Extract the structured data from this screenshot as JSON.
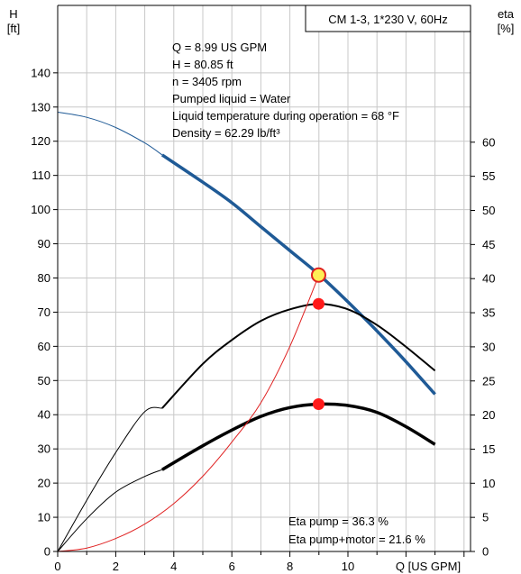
{
  "chart_data": {
    "type": "line",
    "title": "CM 1-3, 1*230 V, 60Hz",
    "left_axis": {
      "label_line1": "H",
      "label_line2": "[ft]",
      "min": 0,
      "max": 140,
      "ticks": [
        0,
        10,
        20,
        30,
        40,
        50,
        60,
        70,
        80,
        90,
        100,
        110,
        120,
        130,
        140
      ]
    },
    "right_axis": {
      "label_line1": "eta",
      "label_line2": "[%]",
      "min": 0,
      "max": 60,
      "ticks": [
        0,
        5,
        10,
        15,
        20,
        25,
        30,
        35,
        40,
        45,
        50,
        55,
        60
      ]
    },
    "x_axis": {
      "label": "Q [US GPM]",
      "min": 0,
      "max": 14,
      "ticks": [
        0,
        2,
        4,
        6,
        8,
        10
      ]
    },
    "info_lines": [
      "Q = 8.99 US GPM",
      "H = 80.85 ft",
      "n = 3405 rpm",
      "Pumped liquid = Water",
      "Liquid temperature during operation = 68 °F",
      "Density = 62.29 lb/ft³"
    ],
    "eta_lines": [
      "Eta pump = 36.3 %",
      "Eta pump+motor = 21.6 %"
    ],
    "series": [
      {
        "id": "head",
        "axis": "H",
        "color": "#1f5a96",
        "thin": [
          [
            0,
            128.5
          ],
          [
            1,
            127
          ],
          [
            2,
            124
          ],
          [
            3,
            119.5
          ],
          [
            3.6,
            116
          ]
        ],
        "thick": [
          [
            3.6,
            116
          ],
          [
            5,
            108
          ],
          [
            6,
            102
          ],
          [
            7,
            95
          ],
          [
            8,
            88
          ],
          [
            9,
            81
          ],
          [
            10,
            73
          ],
          [
            11,
            64.5
          ],
          [
            12,
            55.5
          ],
          [
            13,
            46
          ]
        ]
      },
      {
        "id": "eta_pump",
        "axis": "eta",
        "color": "#000000",
        "thin": [
          [
            0,
            0
          ],
          [
            1,
            7.5
          ],
          [
            2,
            14.5
          ],
          [
            3,
            20.5
          ],
          [
            3.6,
            21
          ]
        ],
        "thick": [
          [
            3.6,
            21
          ],
          [
            5,
            27.5
          ],
          [
            6,
            31
          ],
          [
            7,
            33.8
          ],
          [
            8,
            35.5
          ],
          [
            9,
            36.3
          ],
          [
            10,
            35.5
          ],
          [
            11,
            33.2
          ],
          [
            12,
            30
          ],
          [
            13,
            26.5
          ]
        ]
      },
      {
        "id": "eta_pump_motor",
        "axis": "eta",
        "color": "#000000",
        "thin": [
          [
            0,
            0
          ],
          [
            1,
            4.8
          ],
          [
            2,
            8.7
          ],
          [
            3,
            11
          ],
          [
            3.6,
            12
          ]
        ],
        "thick": [
          [
            3.6,
            12
          ],
          [
            5,
            15.5
          ],
          [
            6,
            17.8
          ],
          [
            7,
            19.8
          ],
          [
            8,
            21.1
          ],
          [
            9,
            21.6
          ],
          [
            10,
            21.4
          ],
          [
            11,
            20.4
          ],
          [
            12,
            18.3
          ],
          [
            13,
            15.7
          ]
        ]
      },
      {
        "id": "system_curve",
        "axis": "H",
        "color": "#e02020",
        "points": [
          [
            0,
            0
          ],
          [
            1,
            1
          ],
          [
            2,
            3.8
          ],
          [
            3,
            8
          ],
          [
            4,
            14
          ],
          [
            5,
            22
          ],
          [
            6,
            32
          ],
          [
            7,
            43.5
          ],
          [
            8,
            60
          ],
          [
            9,
            80.85
          ]
        ]
      }
    ],
    "duty_points": [
      {
        "series": "head",
        "x": 8.99,
        "y": 80.85,
        "style": "yellow"
      },
      {
        "series": "eta_pump",
        "x": 8.99,
        "y": 36.3,
        "style": "red"
      },
      {
        "series": "eta_pump_motor",
        "x": 8.99,
        "y": 21.6,
        "style": "red"
      }
    ]
  }
}
